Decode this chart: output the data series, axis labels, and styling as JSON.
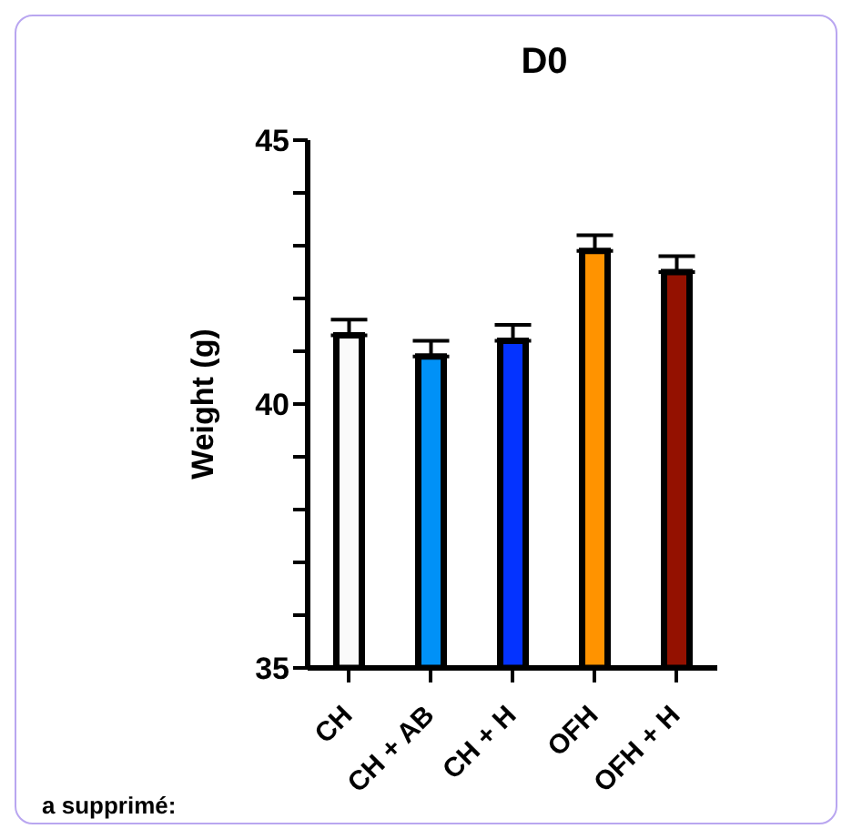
{
  "chart_data": {
    "type": "bar",
    "title": "D0",
    "ylabel": "Weight (g)",
    "categories": [
      "CH",
      "CH + AB",
      "CH + H",
      "OFH",
      "OFH + H"
    ],
    "values": [
      41.3,
      40.9,
      41.2,
      42.9,
      42.5
    ],
    "colors": [
      "#fafafa",
      "#0091f7",
      "#0433ff",
      "#ff9300",
      "#941100"
    ],
    "errors": [
      [
        41.3,
        41.6
      ],
      [
        40.9,
        41.2
      ],
      [
        41.2,
        41.5
      ],
      [
        42.9,
        43.2
      ],
      [
        42.5,
        42.8
      ]
    ],
    "ylim": [
      35,
      45
    ],
    "yticks": [
      35,
      {
        "value": 36,
        "label": null
      },
      {
        "value": 37,
        "label": null
      },
      {
        "value": 38,
        "label": null
      },
      {
        "value": 39,
        "label": null
      },
      40,
      {
        "value": 41,
        "label": null
      },
      {
        "value": 42,
        "label": null
      },
      {
        "value": 43,
        "label": null
      },
      {
        "value": 44,
        "label": null
      },
      45
    ],
    "grid": false,
    "annotations": [
      "a supprimé:"
    ]
  }
}
